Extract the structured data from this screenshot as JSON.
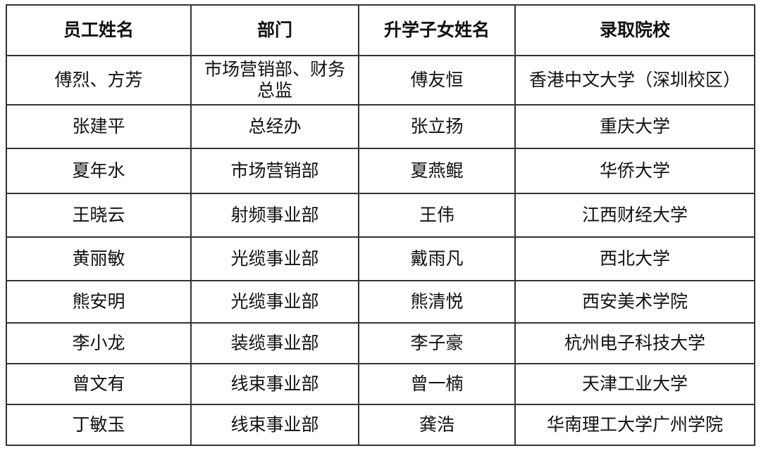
{
  "table": {
    "header": [
      "员工姓名",
      "部门",
      "升学子女姓名",
      "录取院校"
    ],
    "rows": [
      [
        "傅烈、方芳",
        "市场营销部、财务总监",
        "傅友恒",
        "香港中文大学（深圳校区）"
      ],
      [
        "张建平",
        "总经办",
        "张立扬",
        "重庆大学"
      ],
      [
        "夏年水",
        "市场营销部",
        "夏燕鲲",
        "华侨大学"
      ],
      [
        "王晓云",
        "射频事业部",
        "王伟",
        "江西财经大学"
      ],
      [
        "黄丽敏",
        "光缆事业部",
        "戴雨凡",
        "西北大学"
      ],
      [
        "熊安明",
        "光缆事业部",
        "熊清悦",
        "西安美术学院"
      ],
      [
        "李小龙",
        "装缆事业部",
        "李子豪",
        "杭州电子科技大学"
      ],
      [
        "曾文有",
        "线束事业部",
        "曾一楠",
        "天津工业大学"
      ],
      [
        "丁敏玉",
        "线束事业部",
        "龚浩",
        "华南理工大学广州学院"
      ]
    ]
  }
}
